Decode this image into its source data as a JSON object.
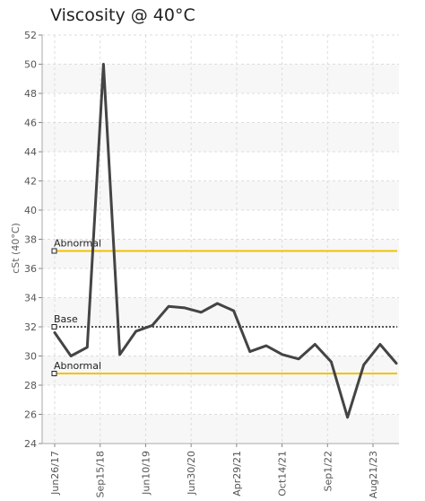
{
  "chart_data": {
    "type": "line",
    "title": "Viscosity @ 40°C",
    "ylabel": "cSt (40°C)",
    "xlabel": "",
    "ylim": [
      24,
      52
    ],
    "yticks": [
      24,
      26,
      28,
      30,
      32,
      34,
      36,
      38,
      40,
      42,
      44,
      46,
      48,
      50,
      52
    ],
    "x_tick_labels": [
      "Jun26/17",
      "Sep15/18",
      "Jun10/19",
      "Jun30/20",
      "Apr29/21",
      "Oct14/21",
      "Sep1/22",
      "Aug21/23"
    ],
    "grid": true,
    "series": [
      {
        "color": "#444444",
        "values": [
          31.6,
          30.0,
          30.6,
          50.0,
          30.1,
          31.7,
          32.1,
          33.4,
          33.3,
          33.0,
          33.6,
          33.1,
          30.3,
          30.7,
          30.1,
          29.8,
          30.8,
          29.6,
          25.8,
          29.4,
          30.8,
          29.5
        ]
      }
    ],
    "reference_lines": [
      {
        "label": "Abnormal",
        "value": 37.2,
        "color": "#f2c200",
        "style": "solid"
      },
      {
        "label": "Base",
        "value": 32.0,
        "color": "#555555",
        "style": "dashed"
      },
      {
        "label": "Abnormal",
        "value": 28.8,
        "color": "#f2c200",
        "style": "solid"
      }
    ]
  }
}
